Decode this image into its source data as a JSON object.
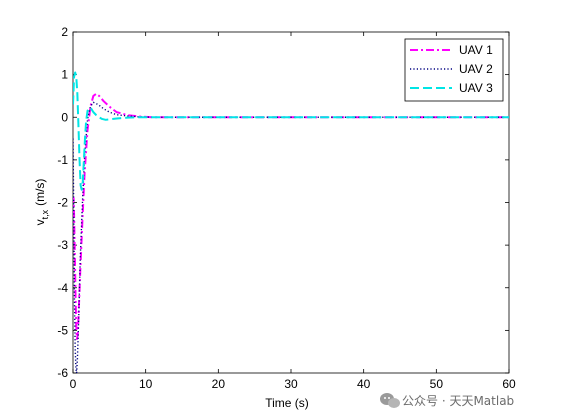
{
  "chart_data": {
    "type": "line",
    "xlabel": "Time (s)",
    "ylabel": "v",
    "ylabel_subscript": "t,x",
    "ylabel_unit": "(m/s)",
    "xlim": [
      0,
      60
    ],
    "ylim": [
      -6,
      2
    ],
    "xticks": [
      0,
      10,
      20,
      30,
      40,
      50,
      60
    ],
    "yticks": [
      -6,
      -5,
      -4,
      -3,
      -2,
      -1,
      0,
      1,
      2
    ],
    "grid": false,
    "legend_position": "top-right",
    "series": [
      {
        "name": "UAV 1",
        "color": "#ff00ff",
        "style": "dash-dot",
        "x": [
          0.0,
          0.08,
          0.15,
          0.25,
          0.35,
          0.45,
          0.55,
          0.65,
          0.8,
          1.0,
          1.3,
          1.6,
          2.0,
          2.4,
          2.8,
          3.2,
          3.6,
          4.2,
          5.0,
          6.0,
          7.5,
          9.0,
          11,
          15,
          20,
          30,
          40,
          50,
          60
        ],
        "y": [
          -2.0,
          -1.9,
          -2.3,
          -3.2,
          -4.2,
          -4.9,
          -5.2,
          -5.1,
          -4.5,
          -3.6,
          -2.4,
          -1.3,
          -0.3,
          0.25,
          0.5,
          0.55,
          0.5,
          0.38,
          0.25,
          0.12,
          0.05,
          0.02,
          0.0,
          0.0,
          0.0,
          0.0,
          0.0,
          0.0,
          0.0
        ]
      },
      {
        "name": "UAV 2",
        "color": "#000080",
        "style": "dotted",
        "x": [
          0.0,
          0.1,
          0.2,
          0.3,
          0.4,
          0.5,
          0.6,
          0.7,
          0.85,
          1.0,
          1.3,
          1.6,
          2.0,
          2.4,
          2.8,
          3.2,
          3.6,
          4.2,
          5.0,
          6.0,
          7.5,
          9.0,
          11,
          15,
          20,
          30,
          40,
          50,
          60
        ],
        "y": [
          -0.5,
          -2.2,
          -4.2,
          -5.4,
          -5.9,
          -6.0,
          -5.7,
          -5.2,
          -4.3,
          -3.3,
          -2.0,
          -0.9,
          -0.05,
          0.25,
          0.35,
          0.32,
          0.28,
          0.2,
          0.12,
          0.06,
          0.03,
          0.01,
          0.0,
          0.0,
          0.0,
          0.0,
          0.0,
          0.0,
          0.0
        ]
      },
      {
        "name": "UAV 3",
        "color": "#00e5e5",
        "style": "dashed",
        "x": [
          0.0,
          0.15,
          0.3,
          0.45,
          0.6,
          0.75,
          0.9,
          1.05,
          1.2,
          1.35,
          1.5,
          1.65,
          1.8,
          2.0,
          2.2,
          2.5,
          2.8,
          3.2,
          3.6,
          4.0,
          4.5,
          5.0,
          6.0,
          7.5,
          9.0,
          12,
          20,
          30,
          40,
          50,
          60
        ],
        "y": [
          0.3,
          0.95,
          1.05,
          0.95,
          0.55,
          -0.2,
          -1.0,
          -1.6,
          -1.7,
          -1.5,
          -1.0,
          -0.5,
          -0.1,
          0.15,
          0.22,
          0.2,
          0.12,
          0.05,
          0.0,
          -0.04,
          -0.06,
          -0.05,
          -0.03,
          -0.01,
          0.0,
          0.0,
          0.0,
          0.0,
          0.0,
          0.0,
          0.0
        ]
      }
    ]
  },
  "watermark": {
    "icon": "wechat-icon",
    "text": "公众号 · 天天Matlab"
  }
}
